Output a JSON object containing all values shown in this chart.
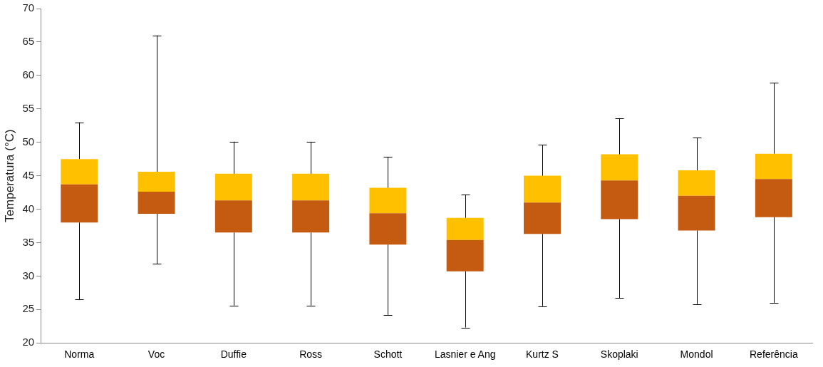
{
  "chart_data": {
    "type": "box",
    "ylabel": "Temperatura (°C)",
    "categories": [
      "Norma",
      "Voc",
      "Duffie",
      "Ross",
      "Schott",
      "Lasnier e Ang",
      "Kurtz S",
      "Skoplaki",
      "Mondol",
      "Referência"
    ],
    "series": [
      {
        "colors": [
          [
            "#c55a11",
            "#ffc000"
          ],
          [
            "#c55a11",
            "#ffc000"
          ],
          [
            "#c55a11",
            "#ffc000"
          ],
          [
            "#c55a11",
            "#ffc000"
          ],
          [
            "#c55a11",
            "#ffc000"
          ],
          [
            "#c55a11",
            "#ffc000"
          ],
          [
            "#c55a11",
            "#ffc000"
          ],
          [
            "#c55a11",
            "#ffc000"
          ],
          [
            "#c55a11",
            "#ffc000"
          ],
          [
            "#c55a11",
            "#ffc000"
          ]
        ],
        "boxes": [
          {
            "low": 26.5,
            "q1": 38,
            "median": 43.7,
            "q3": 47.5,
            "high": 53
          },
          {
            "low": 31.8,
            "q1": 39.3,
            "median": 42.6,
            "q3": 45.6,
            "high": 66
          },
          {
            "low": 25.6,
            "q1": 36.5,
            "median": 41.3,
            "q3": 45.3,
            "high": 50.1
          },
          {
            "low": 25.6,
            "q1": 36.5,
            "median": 41.3,
            "q3": 45.3,
            "high": 50.1
          },
          {
            "low": 24.2,
            "q1": 34.7,
            "median": 39.4,
            "q3": 43.2,
            "high": 47.8
          },
          {
            "low": 22.3,
            "q1": 30.7,
            "median": 35.4,
            "q3": 38.7,
            "high": 42.2
          },
          {
            "low": 25.5,
            "q1": 36.3,
            "median": 41,
            "q3": 45,
            "high": 49.6
          },
          {
            "low": 26.7,
            "q1": 38.5,
            "median": 44.3,
            "q3": 48.2,
            "high": 53.6
          },
          {
            "low": 25.8,
            "q1": 36.8,
            "median": 42,
            "q3": 45.8,
            "high": 50.7
          },
          {
            "low": 26,
            "q1": 38.8,
            "median": 44.5,
            "q3": 48.3,
            "high": 58.9
          }
        ]
      }
    ],
    "ylim": [
      20,
      70
    ],
    "yticks": [
      20,
      25,
      30,
      35,
      40,
      45,
      50,
      55,
      60,
      65,
      70
    ],
    "grid": false,
    "legend": false
  }
}
